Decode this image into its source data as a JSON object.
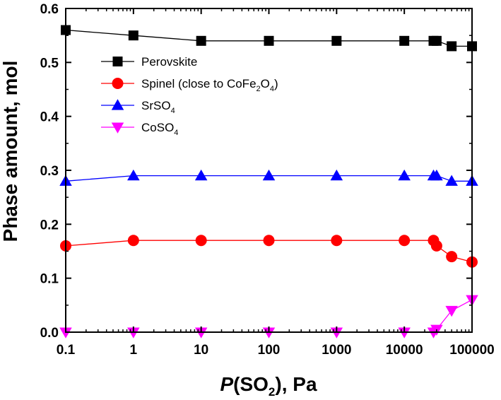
{
  "chart_data": {
    "type": "line",
    "xscale": "log",
    "xlim": [
      0.1,
      100000
    ],
    "ylim": [
      0.0,
      0.6
    ],
    "x_ticks": [
      "0.1",
      "1",
      "10",
      "100",
      "1000",
      "10000",
      "100000"
    ],
    "y_ticks": [
      "0.0",
      "0.1",
      "0.2",
      "0.3",
      "0.4",
      "0.5",
      "0.6"
    ],
    "xlabel": {
      "italic": "P",
      "main": "(SO",
      "sub": "2",
      "rest": "), Pa"
    },
    "ylabel": "Phase amount, mol",
    "legend_position": "upper-left",
    "series": [
      {
        "name": "Perovskite",
        "legend": {
          "main": "Perovskite"
        },
        "color": "#000000",
        "marker": "square",
        "x": [
          0.1,
          1,
          10,
          100,
          1000,
          10000,
          27000,
          30000,
          50000,
          100000
        ],
        "y": [
          0.56,
          0.55,
          0.54,
          0.54,
          0.54,
          0.54,
          0.54,
          0.54,
          0.53,
          0.53
        ]
      },
      {
        "name": "Spinel (close to CoFe2O4)",
        "legend": {
          "main": "Spinel (close to CoFe",
          "sub1": "2",
          "mid": "O",
          "sub2": "4",
          "end": ")"
        },
        "color": "#ff0000",
        "marker": "circle",
        "x": [
          0.1,
          1,
          10,
          100,
          1000,
          10000,
          27000,
          30000,
          50000,
          100000
        ],
        "y": [
          0.16,
          0.17,
          0.17,
          0.17,
          0.17,
          0.17,
          0.17,
          0.16,
          0.14,
          0.13
        ]
      },
      {
        "name": "SrSO4",
        "legend": {
          "main": "SrSO",
          "sub1": "4"
        },
        "color": "#0000ff",
        "marker": "triangle-up",
        "x": [
          0.1,
          1,
          10,
          100,
          1000,
          10000,
          27000,
          30000,
          50000,
          100000
        ],
        "y": [
          0.28,
          0.29,
          0.29,
          0.29,
          0.29,
          0.29,
          0.29,
          0.29,
          0.28,
          0.28
        ]
      },
      {
        "name": "CoSO4",
        "legend": {
          "main": "CoSO",
          "sub1": "4"
        },
        "color": "#ff00ff",
        "marker": "triangle-down",
        "x": [
          0.1,
          1,
          10,
          100,
          1000,
          10000,
          27000,
          30000,
          50000,
          100000
        ],
        "y": [
          0.0,
          0.0,
          0.0,
          0.0,
          0.0,
          0.0,
          0.0,
          0.005,
          0.04,
          0.06
        ]
      }
    ]
  }
}
